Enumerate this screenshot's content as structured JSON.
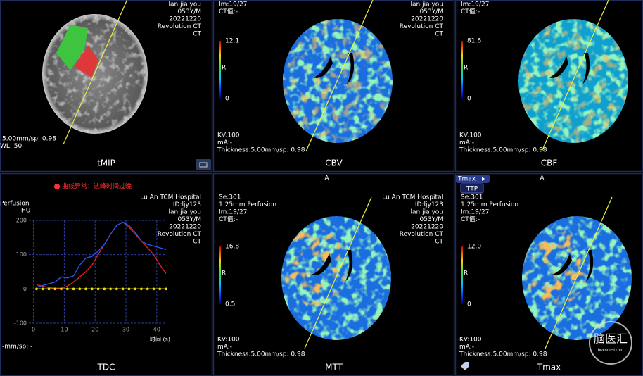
{
  "panels": [
    {
      "label": "tMIP",
      "top_right": [
        "lan jia you",
        "053Y/M",
        "20221220",
        "Revolution CT",
        "CT"
      ],
      "bottom_left": [
        ":5.00mm/sp: 0.98",
        "WL: 50"
      ]
    },
    {
      "label": "CBV",
      "top_left": [
        "Im:19/27",
        "CT值:-"
      ],
      "top_right": [
        "lan jia you",
        "053Y/M",
        "20221220",
        "Revolution CT",
        "CT"
      ],
      "scale": {
        "max": "12.1",
        "mid": "R",
        "min": "0"
      },
      "bottom_left": [
        "KV:100",
        "mA:-",
        "Thickness:5.00mm/sp: 0.98"
      ]
    },
    {
      "label": "CBF",
      "top_left": [
        "Im:19/27",
        "CT值:-"
      ],
      "scale": {
        "max": "81.6",
        "mid": "R",
        "min": "0"
      },
      "bottom_left": [
        "KV:100",
        "mA:-",
        "Thickness:5.00mm/sp: 0.98"
      ]
    },
    {
      "label": "TDC",
      "alert": "曲线异常：达峰时间过晚",
      "top_right": [
        "Lu An TCM Hospital",
        "ID:ljy123",
        "lan jia you",
        "053Y/M",
        "20221220",
        "Revolution CT",
        "CT"
      ],
      "series_label": "Perfusion",
      "bottom_left": [
        ":-mm/sp: -"
      ],
      "chart": {
        "type": "line",
        "y_label": "HU",
        "x_label": "时间 (s)",
        "xlim": [
          -1.5,
          43
        ],
        "ylim": [
          -100,
          200
        ],
        "xticks": [
          0,
          10,
          20,
          30,
          40
        ],
        "yticks": [
          -100,
          0,
          100,
          200
        ],
        "grid": true,
        "x": [
          1,
          3,
          5,
          7,
          9,
          11,
          13,
          15,
          17,
          19,
          21,
          23,
          25,
          27,
          29,
          31,
          33,
          35,
          37,
          39,
          41,
          43
        ],
        "series": [
          {
            "color": "#e02020",
            "values": [
              12,
              8,
              4,
              2,
              2,
              8,
              20,
              35,
              50,
              70,
              100,
              130,
              160,
              185,
              195,
              180,
              160,
              140,
              120,
              100,
              70,
              45
            ]
          },
          {
            "color": "#2855e8",
            "values": [
              5,
              10,
              15,
              20,
              35,
              32,
              38,
              70,
              90,
              95,
              110,
              130,
              160,
              185,
              195,
              185,
              165,
              140,
              130,
              125,
              120,
              115
            ]
          },
          {
            "color": "#e8e000",
            "values": [
              0,
              0,
              0,
              0,
              0,
              0,
              0,
              0,
              0,
              0,
              0,
              0,
              0,
              0,
              0,
              0,
              0,
              0,
              0,
              0,
              0,
              0
            ]
          }
        ]
      }
    },
    {
      "label": "MTT",
      "top_center": "A",
      "top_left": [
        "Se:301",
        "1.25mm Perfusion",
        "Im:19/27",
        "CT值:-"
      ],
      "top_right": [
        "Lu An TCM Hospital",
        "ID:ljy123",
        "lan jia you",
        "053Y/M",
        "20221220",
        "Revolution CT",
        "CT"
      ],
      "scale": {
        "max": "16.8",
        "mid": "R",
        "min": "0.5"
      },
      "bottom_left": [
        "KV:100",
        "mA:-",
        "Thickness:5.00mm/sp: 0.98"
      ]
    },
    {
      "label": "Tmax",
      "top_center": "A",
      "tabs": [
        "Tmax",
        "TTP"
      ],
      "top_left": [
        "Se:301",
        "1.25mm Perfusion",
        "Im:19/27",
        "CT值:-"
      ],
      "scale": {
        "max": "12.0",
        "mid": "R",
        "min": "0"
      },
      "bottom_left": [
        "KV:100",
        "mA:-",
        "Thickness:5.00mm/sp: 0.98"
      ],
      "watermark": [
        "脑医汇",
        "brainmed.com"
      ]
    }
  ]
}
